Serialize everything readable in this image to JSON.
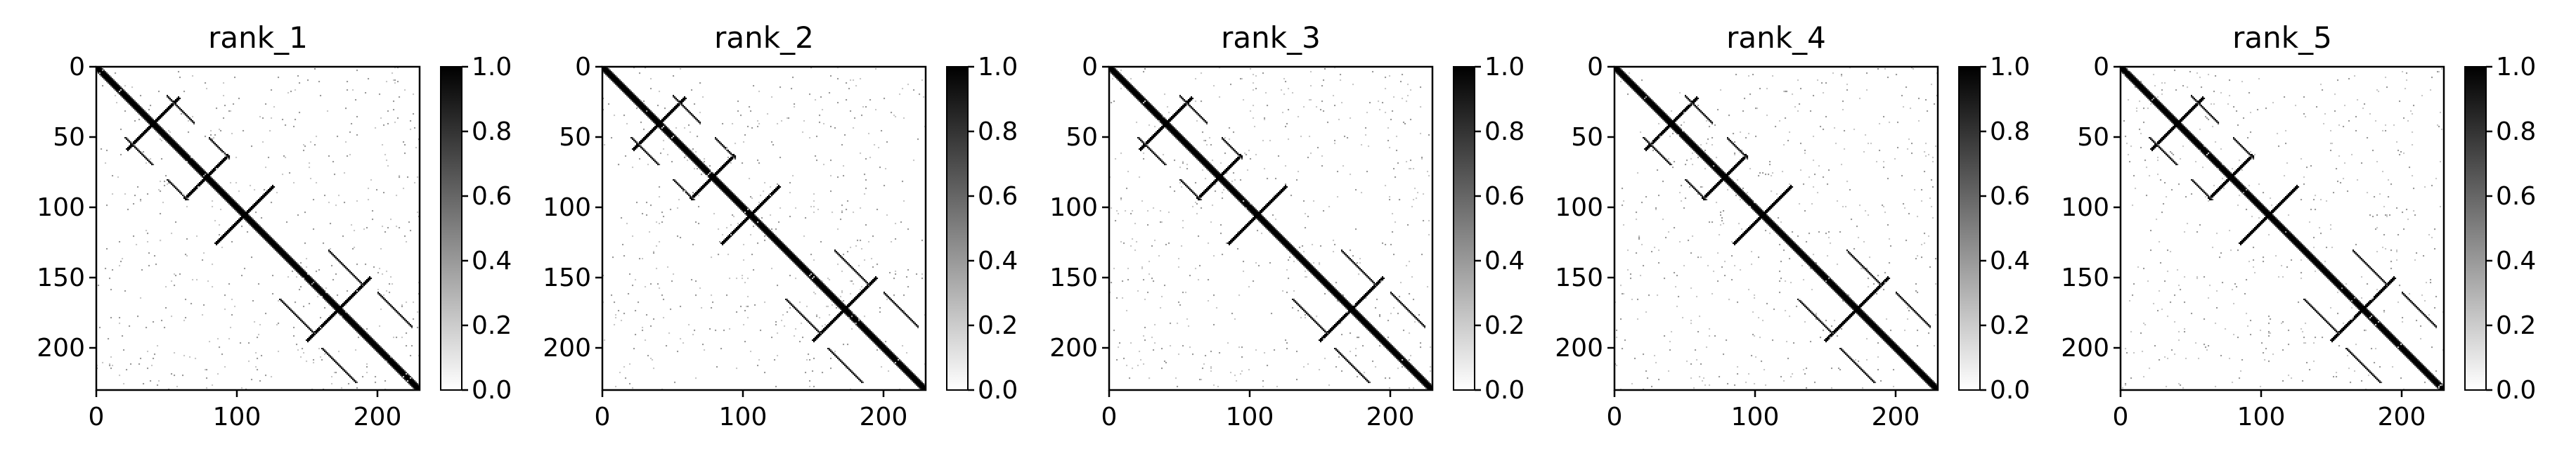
{
  "chart_data": [
    {
      "type": "heatmap",
      "title": "rank_1",
      "matrix_size": 230,
      "colormap": "gray_r",
      "x_ticks": [
        0,
        100,
        200
      ],
      "y_ticks": [
        0,
        50,
        100,
        150,
        200
      ],
      "x_range": [
        0,
        230
      ],
      "y_range": [
        230,
        0
      ],
      "colorbar": {
        "range": [
          0.0,
          1.0
        ],
        "ticks": [
          "0.0",
          "0.2",
          "0.4",
          "0.6",
          "0.8",
          "1.0"
        ]
      },
      "contacts": [
        {
          "type": "antiparallel",
          "center": 40,
          "half_length": 18
        },
        {
          "type": "antiparallel",
          "center": 78,
          "half_length": 15
        },
        {
          "type": "antiparallel",
          "center": 105,
          "half_length": 20
        },
        {
          "type": "antiparallel",
          "center": 172,
          "half_length": 22
        },
        {
          "type": "parallel",
          "start": [
            50,
            20
          ],
          "length": 20
        },
        {
          "type": "parallel",
          "start": [
            80,
            50
          ],
          "length": 15
        },
        {
          "type": "parallel",
          "start": [
            165,
            130
          ],
          "length": 25
        },
        {
          "type": "parallel",
          "start": [
            200,
            160
          ],
          "length": 25
        }
      ]
    },
    {
      "type": "heatmap",
      "title": "rank_2",
      "matrix_size": 230,
      "colormap": "gray_r",
      "x_ticks": [
        0,
        100,
        200
      ],
      "y_ticks": [
        0,
        50,
        100,
        150,
        200
      ],
      "x_range": [
        0,
        230
      ],
      "y_range": [
        230,
        0
      ],
      "colorbar": {
        "range": [
          0.0,
          1.0
        ],
        "ticks": [
          "0.0",
          "0.2",
          "0.4",
          "0.6",
          "0.8",
          "1.0"
        ]
      },
      "contacts": [
        {
          "type": "antiparallel",
          "center": 40,
          "half_length": 18
        },
        {
          "type": "antiparallel",
          "center": 78,
          "half_length": 15
        },
        {
          "type": "antiparallel",
          "center": 105,
          "half_length": 20
        },
        {
          "type": "antiparallel",
          "center": 172,
          "half_length": 22
        },
        {
          "type": "parallel",
          "start": [
            50,
            20
          ],
          "length": 20
        },
        {
          "type": "parallel",
          "start": [
            80,
            50
          ],
          "length": 15
        },
        {
          "type": "parallel",
          "start": [
            165,
            130
          ],
          "length": 25
        },
        {
          "type": "parallel",
          "start": [
            200,
            160
          ],
          "length": 25
        }
      ]
    },
    {
      "type": "heatmap",
      "title": "rank_3",
      "matrix_size": 230,
      "colormap": "gray_r",
      "x_ticks": [
        0,
        100,
        200
      ],
      "y_ticks": [
        0,
        50,
        100,
        150,
        200
      ],
      "x_range": [
        0,
        230
      ],
      "y_range": [
        230,
        0
      ],
      "colorbar": {
        "range": [
          0.0,
          1.0
        ],
        "ticks": [
          "0.0",
          "0.2",
          "0.4",
          "0.6",
          "0.8",
          "1.0"
        ]
      },
      "contacts": [
        {
          "type": "antiparallel",
          "center": 40,
          "half_length": 18
        },
        {
          "type": "antiparallel",
          "center": 78,
          "half_length": 15
        },
        {
          "type": "antiparallel",
          "center": 105,
          "half_length": 20
        },
        {
          "type": "antiparallel",
          "center": 172,
          "half_length": 22
        },
        {
          "type": "parallel",
          "start": [
            50,
            20
          ],
          "length": 20
        },
        {
          "type": "parallel",
          "start": [
            80,
            50
          ],
          "length": 15
        },
        {
          "type": "parallel",
          "start": [
            165,
            130
          ],
          "length": 25
        },
        {
          "type": "parallel",
          "start": [
            200,
            160
          ],
          "length": 25
        }
      ]
    },
    {
      "type": "heatmap",
      "title": "rank_4",
      "matrix_size": 230,
      "colormap": "gray_r",
      "x_ticks": [
        0,
        100,
        200
      ],
      "y_ticks": [
        0,
        50,
        100,
        150,
        200
      ],
      "x_range": [
        0,
        230
      ],
      "y_range": [
        230,
        0
      ],
      "colorbar": {
        "range": [
          0.0,
          1.0
        ],
        "ticks": [
          "0.0",
          "0.2",
          "0.4",
          "0.6",
          "0.8",
          "1.0"
        ]
      },
      "contacts": [
        {
          "type": "antiparallel",
          "center": 40,
          "half_length": 18
        },
        {
          "type": "antiparallel",
          "center": 78,
          "half_length": 15
        },
        {
          "type": "antiparallel",
          "center": 105,
          "half_length": 20
        },
        {
          "type": "antiparallel",
          "center": 172,
          "half_length": 22
        },
        {
          "type": "parallel",
          "start": [
            50,
            20
          ],
          "length": 20
        },
        {
          "type": "parallel",
          "start": [
            80,
            50
          ],
          "length": 15
        },
        {
          "type": "parallel",
          "start": [
            165,
            130
          ],
          "length": 25
        },
        {
          "type": "parallel",
          "start": [
            200,
            160
          ],
          "length": 25
        }
      ]
    },
    {
      "type": "heatmap",
      "title": "rank_5",
      "matrix_size": 230,
      "colormap": "gray_r",
      "x_ticks": [
        0,
        100,
        200
      ],
      "y_ticks": [
        0,
        50,
        100,
        150,
        200
      ],
      "x_range": [
        0,
        230
      ],
      "y_range": [
        230,
        0
      ],
      "colorbar": {
        "range": [
          0.0,
          1.0
        ],
        "ticks": [
          "0.0",
          "0.2",
          "0.4",
          "0.6",
          "0.8",
          "1.0"
        ]
      },
      "contacts": [
        {
          "type": "antiparallel",
          "center": 40,
          "half_length": 18
        },
        {
          "type": "antiparallel",
          "center": 78,
          "half_length": 15
        },
        {
          "type": "antiparallel",
          "center": 105,
          "half_length": 20
        },
        {
          "type": "antiparallel",
          "center": 172,
          "half_length": 22
        },
        {
          "type": "parallel",
          "start": [
            50,
            20
          ],
          "length": 20
        },
        {
          "type": "parallel",
          "start": [
            80,
            50
          ],
          "length": 15
        },
        {
          "type": "parallel",
          "start": [
            165,
            130
          ],
          "length": 25
        },
        {
          "type": "parallel",
          "start": [
            200,
            160
          ],
          "length": 25
        }
      ]
    }
  ]
}
